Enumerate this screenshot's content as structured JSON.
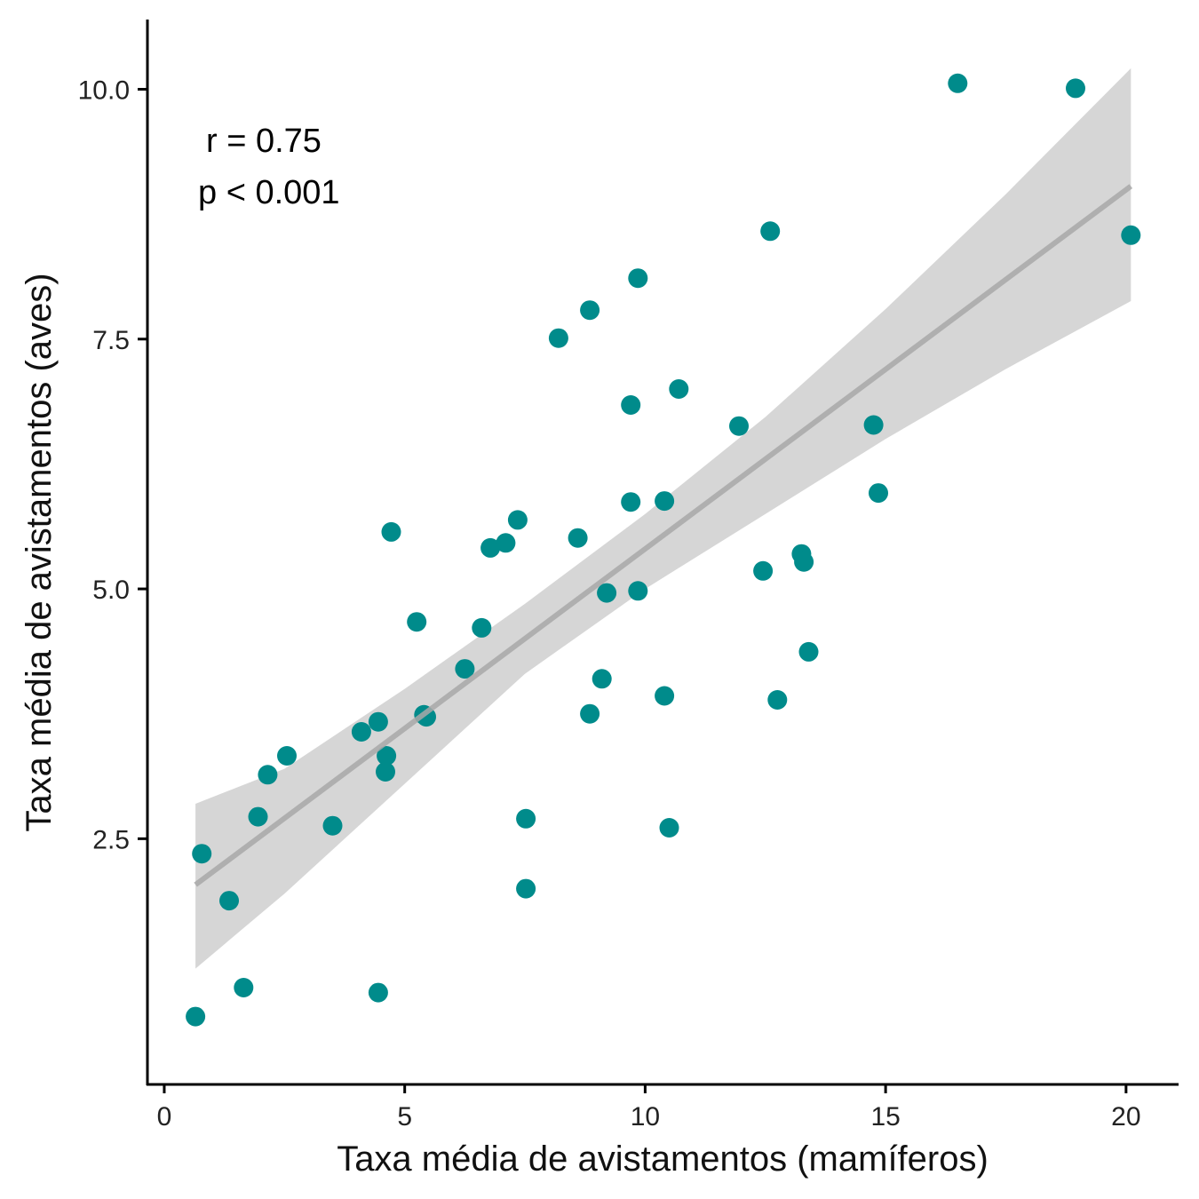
{
  "chart_data": {
    "type": "scatter",
    "xlabel": "Taxa média de avistamentos (mamíferos)",
    "ylabel": "Taxa média de avistamentos (aves)",
    "xlim": [
      -0.35,
      21.0
    ],
    "ylim": [
      0.05,
      10.68
    ],
    "xticks": [
      0,
      5,
      10,
      15,
      20
    ],
    "xtick_labels": [
      "0",
      "5",
      "10",
      "15",
      "20"
    ],
    "yticks": [
      2.5,
      5.0,
      7.5,
      10.0
    ],
    "ytick_labels": [
      "2.5",
      "5.0",
      "7.5",
      "10.0"
    ],
    "grid": false,
    "legend": "none",
    "point_color": "#008B8B",
    "fit_line_color": "#A8A8A8",
    "ci_band_color": "#D6D6D6",
    "annotations": [
      "r = 0.75",
      "p < 0.001"
    ],
    "points": [
      {
        "x": 0.65,
        "y": 0.72
      },
      {
        "x": 0.78,
        "y": 2.35
      },
      {
        "x": 1.35,
        "y": 1.88
      },
      {
        "x": 1.65,
        "y": 1.01
      },
      {
        "x": 1.95,
        "y": 2.72
      },
      {
        "x": 2.15,
        "y": 3.14
      },
      {
        "x": 2.55,
        "y": 3.33
      },
      {
        "x": 3.5,
        "y": 2.63
      },
      {
        "x": 4.1,
        "y": 3.57
      },
      {
        "x": 4.45,
        "y": 3.67
      },
      {
        "x": 4.45,
        "y": 0.96
      },
      {
        "x": 4.6,
        "y": 3.17
      },
      {
        "x": 4.62,
        "y": 3.33
      },
      {
        "x": 4.72,
        "y": 5.57
      },
      {
        "x": 5.25,
        "y": 4.67
      },
      {
        "x": 5.4,
        "y": 3.74
      },
      {
        "x": 5.45,
        "y": 3.72
      },
      {
        "x": 6.25,
        "y": 4.2
      },
      {
        "x": 6.6,
        "y": 4.61
      },
      {
        "x": 6.78,
        "y": 5.41
      },
      {
        "x": 7.1,
        "y": 5.46
      },
      {
        "x": 7.35,
        "y": 5.69
      },
      {
        "x": 7.52,
        "y": 2.7
      },
      {
        "x": 7.52,
        "y": 2.0
      },
      {
        "x": 8.2,
        "y": 7.51
      },
      {
        "x": 8.6,
        "y": 5.51
      },
      {
        "x": 8.85,
        "y": 7.79
      },
      {
        "x": 8.85,
        "y": 3.75
      },
      {
        "x": 9.1,
        "y": 4.1
      },
      {
        "x": 9.2,
        "y": 4.96
      },
      {
        "x": 9.7,
        "y": 6.84
      },
      {
        "x": 9.7,
        "y": 5.87
      },
      {
        "x": 9.85,
        "y": 8.11
      },
      {
        "x": 9.85,
        "y": 4.98
      },
      {
        "x": 10.4,
        "y": 5.88
      },
      {
        "x": 10.4,
        "y": 3.93
      },
      {
        "x": 10.5,
        "y": 2.61
      },
      {
        "x": 10.7,
        "y": 7.0
      },
      {
        "x": 11.95,
        "y": 6.63
      },
      {
        "x": 12.45,
        "y": 5.18
      },
      {
        "x": 12.6,
        "y": 8.58
      },
      {
        "x": 12.75,
        "y": 3.89
      },
      {
        "x": 13.25,
        "y": 5.35
      },
      {
        "x": 13.3,
        "y": 5.27
      },
      {
        "x": 13.4,
        "y": 4.37
      },
      {
        "x": 14.75,
        "y": 6.64
      },
      {
        "x": 14.85,
        "y": 5.96
      },
      {
        "x": 16.5,
        "y": 10.06
      },
      {
        "x": 18.95,
        "y": 10.01
      },
      {
        "x": 20.1,
        "y": 8.54
      }
    ],
    "fit_line": {
      "x": [
        0.65,
        20.1
      ],
      "y": [
        2.04,
        9.03
      ]
    },
    "ci_band": {
      "x": [
        0.65,
        2.5,
        5.0,
        7.5,
        10.0,
        12.5,
        15.0,
        17.5,
        20.1
      ],
      "lower": [
        1.2,
        1.95,
        3.05,
        4.15,
        5.0,
        5.75,
        6.5,
        7.2,
        7.88
      ],
      "upper": [
        2.85,
        3.2,
        4.0,
        4.85,
        5.75,
        6.72,
        7.8,
        8.95,
        10.21
      ]
    }
  }
}
